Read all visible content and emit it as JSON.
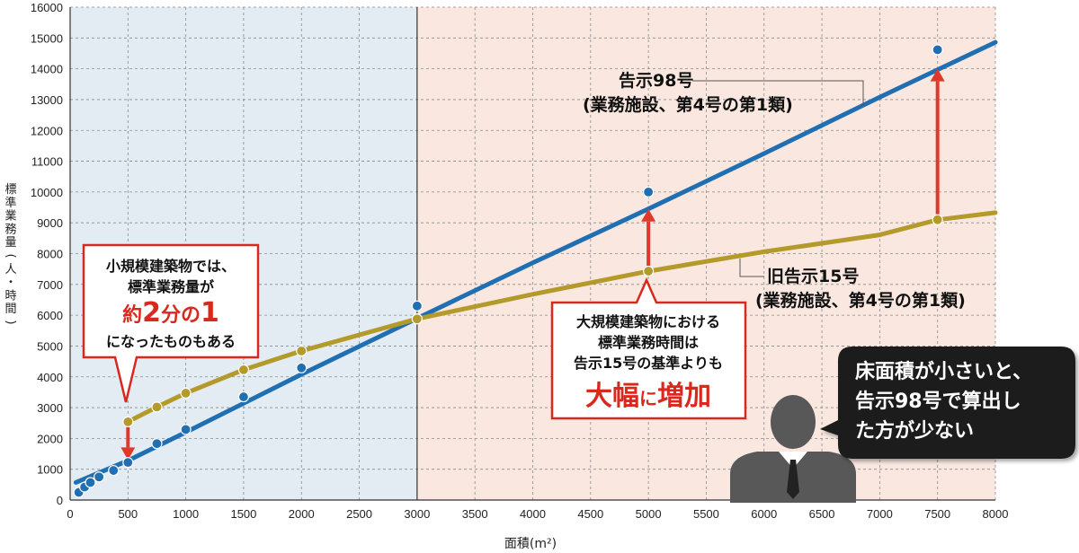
{
  "chart_data": {
    "type": "line",
    "xlabel": "面積(m²)",
    "ylabel": "標準業務量(人・時間)",
    "xlim": [
      0,
      8000
    ],
    "ylim": [
      0,
      16000
    ],
    "x_ticks": [
      0,
      500,
      1000,
      1500,
      2000,
      2500,
      3000,
      3500,
      4000,
      4500,
      5000,
      5500,
      6000,
      6500,
      7000,
      7500,
      8000
    ],
    "y_ticks": [
      0,
      1000,
      2000,
      3000,
      4000,
      5000,
      6000,
      7000,
      8000,
      9000,
      10000,
      11000,
      12000,
      13000,
      14000,
      15000,
      16000
    ],
    "grid": true,
    "shaded_regions": [
      {
        "from": 0,
        "to": 3000,
        "color": "#e4ecf3"
      },
      {
        "from": 3000,
        "to": 8000,
        "color": "#fae8e0"
      }
    ],
    "colors": {
      "blue": "#1f6fb2",
      "gold": "#b39a2b",
      "arrow": "#e0382b",
      "note_red": "#d9281e"
    },
    "series": [
      {
        "name_lines": [
          "告示98号",
          "(業務施設、第4号の第1類)"
        ],
        "line": [
          [
            50,
            570
          ],
          [
            500,
            1280
          ],
          [
            1000,
            2200
          ],
          [
            2000,
            4080
          ],
          [
            3000,
            5900
          ],
          [
            4000,
            7700
          ],
          [
            5000,
            9450
          ],
          [
            6000,
            11250
          ],
          [
            7000,
            13080
          ],
          [
            8000,
            14860
          ]
        ],
        "points": [
          [
            75,
            250
          ],
          [
            125,
            420
          ],
          [
            175,
            570
          ],
          [
            250,
            750
          ],
          [
            375,
            960
          ],
          [
            500,
            1220
          ],
          [
            750,
            1830
          ],
          [
            1000,
            2290
          ],
          [
            1500,
            3350
          ],
          [
            2000,
            4290
          ],
          [
            3000,
            6300
          ],
          [
            5000,
            10000
          ],
          [
            7500,
            14620
          ]
        ]
      },
      {
        "name_lines": [
          "旧告示15号",
          "(業務施設、第4号の第1類)"
        ],
        "line": [
          [
            500,
            2540
          ],
          [
            750,
            3020
          ],
          [
            1000,
            3470
          ],
          [
            1500,
            4230
          ],
          [
            2000,
            4840
          ],
          [
            3000,
            5880
          ],
          [
            4000,
            6680
          ],
          [
            5000,
            7430
          ],
          [
            6000,
            8060
          ],
          [
            7000,
            8610
          ],
          [
            7500,
            9100
          ],
          [
            8000,
            9330
          ]
        ],
        "points": [
          [
            500,
            2540
          ],
          [
            750,
            3020
          ],
          [
            1000,
            3470
          ],
          [
            1500,
            4230
          ],
          [
            2000,
            4840
          ],
          [
            3000,
            5880
          ],
          [
            5000,
            7430
          ],
          [
            7500,
            9100
          ]
        ]
      }
    ],
    "arrows": [
      {
        "x": 500,
        "from": 2540,
        "to": 1300
      },
      {
        "x": 5000,
        "from": 7430,
        "to": 9450
      },
      {
        "x": 7500,
        "from": 9100,
        "to": 14000
      }
    ],
    "annotations": [
      {
        "lines": [
          "小規模建築物では、",
          "標準業務量が"
        ],
        "big": [
          "約",
          "2",
          "分の",
          "1"
        ],
        "tail": "になったものもある"
      },
      {
        "lines": [
          "大規模建築物における",
          "標準業務時間は",
          "告示15号の基準よりも"
        ],
        "big": [
          "大幅",
          "に",
          "増加"
        ]
      },
      {
        "lines": [
          "床面積が小さいと、",
          "告示98号で算出し",
          "た方が少ない"
        ]
      }
    ]
  }
}
